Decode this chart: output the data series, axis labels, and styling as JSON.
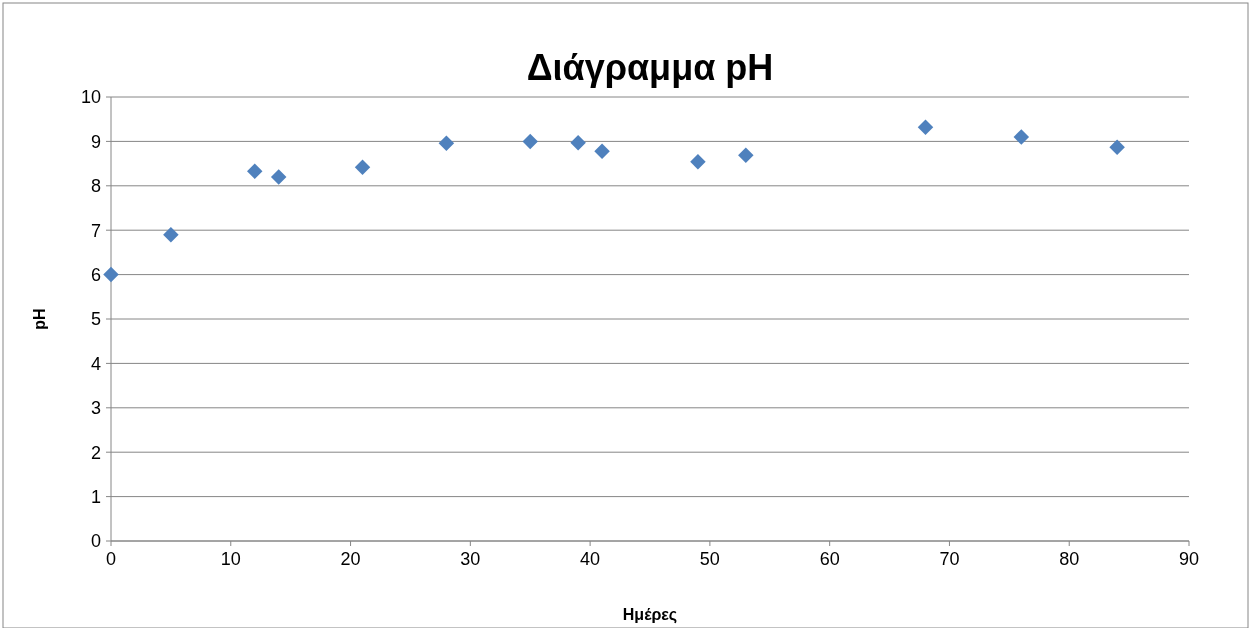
{
  "chart_data": {
    "type": "scatter",
    "title": "Διάγραμμα pH",
    "xlabel": "Ημέρες",
    "ylabel": "pH",
    "x": [
      0,
      5,
      12,
      14,
      21,
      28,
      35,
      39,
      41,
      49,
      53,
      68,
      76,
      84
    ],
    "series": [
      {
        "color": "#4f81bd",
        "values": [
          6.0,
          6.9,
          8.33,
          8.2,
          8.42,
          8.96,
          9.0,
          8.97,
          8.78,
          8.54,
          8.69,
          9.32,
          9.1,
          8.87
        ]
      }
    ],
    "xlim": [
      0,
      90
    ],
    "xticks": [
      0,
      10,
      20,
      30,
      40,
      50,
      60,
      70,
      80,
      90
    ],
    "ylim": [
      0,
      10
    ],
    "yticks": [
      0,
      1,
      2,
      3,
      4,
      5,
      6,
      7,
      8,
      9,
      10
    ],
    "grid": "y",
    "marker": "diamond"
  }
}
